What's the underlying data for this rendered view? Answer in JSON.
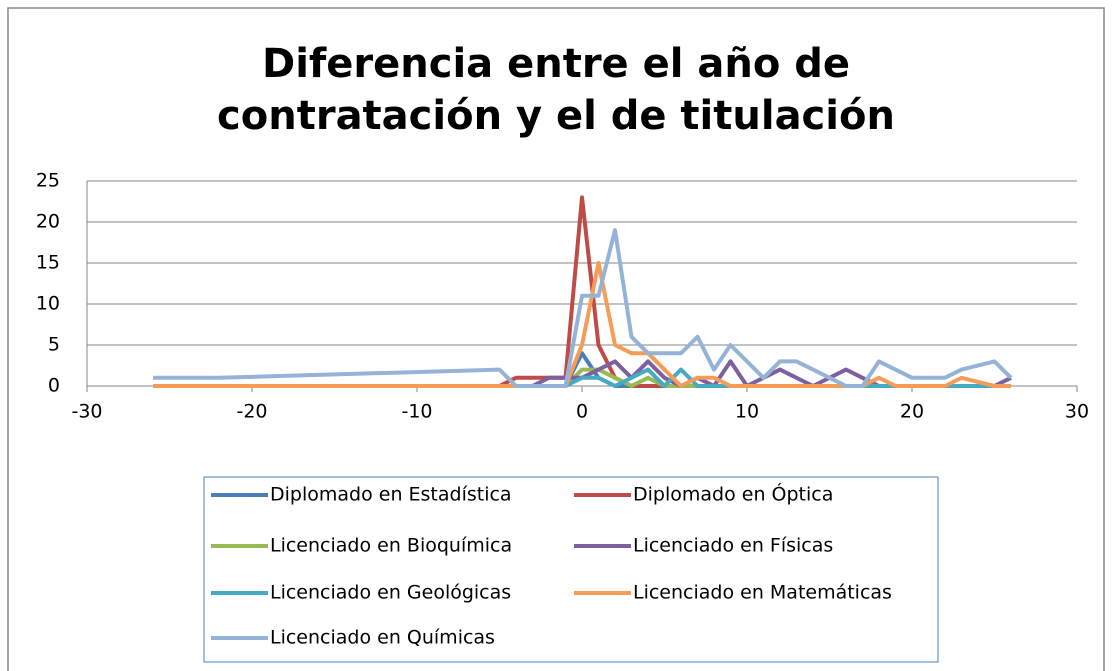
{
  "chart_data": {
    "type": "line",
    "title": "Diferencia entre el año de contratación y el de titulación",
    "x": [
      -26,
      -22,
      -5,
      -4,
      -3,
      -2,
      -1,
      0,
      1,
      2,
      3,
      4,
      5,
      6,
      7,
      8,
      9,
      10,
      11,
      12,
      13,
      14,
      15,
      16,
      17,
      18,
      19,
      20,
      21,
      22,
      23,
      25,
      26
    ],
    "xlim": [
      -30,
      30
    ],
    "xticks": [
      -30,
      -20,
      -10,
      0,
      10,
      20,
      30
    ],
    "ylim": [
      0,
      25
    ],
    "yticks": [
      0,
      5,
      10,
      15,
      20,
      25
    ],
    "grid": true,
    "legend": "bottom",
    "series": [
      {
        "name": "Diplomado en Estadística",
        "color": "#4a7ebb",
        "values": [
          0,
          0,
          0,
          0,
          0,
          0,
          0,
          4,
          1,
          0,
          0,
          0,
          0,
          0,
          0,
          0,
          0,
          0,
          0,
          0,
          0,
          0,
          0,
          0,
          0,
          0,
          0,
          0,
          0,
          0,
          0,
          0,
          0
        ]
      },
      {
        "name": "Diplomado en Óptica",
        "color": "#be4b48",
        "values": [
          0,
          0,
          0,
          1,
          1,
          1,
          1,
          23,
          5,
          1,
          0,
          0,
          0,
          0,
          0,
          0,
          0,
          0,
          0,
          0,
          0,
          0,
          0,
          0,
          0,
          0,
          0,
          0,
          0,
          0,
          0,
          0,
          0
        ]
      },
      {
        "name": "Licenciado en Bioquímica",
        "color": "#98b954",
        "values": [
          0,
          0,
          0,
          0,
          0,
          0,
          0,
          2,
          2,
          1,
          0,
          1,
          0,
          0,
          0,
          0,
          0,
          0,
          0,
          0,
          0,
          0,
          0,
          0,
          0,
          0,
          0,
          0,
          0,
          0,
          0,
          0,
          0
        ]
      },
      {
        "name": "Licenciado en Físicas",
        "color": "#7d60a0",
        "values": [
          0,
          0,
          0,
          0,
          0,
          1,
          1,
          1,
          2,
          3,
          1,
          3,
          1,
          0,
          1,
          0,
          3,
          0,
          1,
          2,
          1,
          0,
          1,
          2,
          1,
          0,
          0,
          0,
          0,
          0,
          0,
          0,
          1
        ]
      },
      {
        "name": "Licenciado en Geológicas",
        "color": "#46aac5",
        "values": [
          0,
          0,
          0,
          0,
          0,
          0,
          0,
          1,
          1,
          0,
          1,
          2,
          0,
          2,
          0,
          0,
          0,
          0,
          0,
          0,
          0,
          0,
          0,
          0,
          0,
          0,
          0,
          0,
          0,
          0,
          0,
          0,
          0
        ]
      },
      {
        "name": "Licenciado en Matemáticas",
        "color": "#f59d56",
        "values": [
          0,
          0,
          0,
          0,
          0,
          0,
          0,
          5,
          15,
          5,
          4,
          4,
          2,
          0,
          1,
          1,
          0,
          0,
          0,
          0,
          0,
          0,
          0,
          0,
          0,
          1,
          0,
          0,
          0,
          0,
          1,
          0,
          0
        ]
      },
      {
        "name": "Licenciado en Químicas",
        "color": "#95b3d7",
        "values": [
          1,
          1,
          2,
          0,
          0,
          0,
          0,
          11,
          11,
          19,
          6,
          4,
          4,
          4,
          6,
          2,
          5,
          3,
          1,
          3,
          3,
          2,
          1,
          0,
          0,
          3,
          2,
          1,
          1,
          1,
          2,
          3,
          1
        ]
      }
    ]
  }
}
